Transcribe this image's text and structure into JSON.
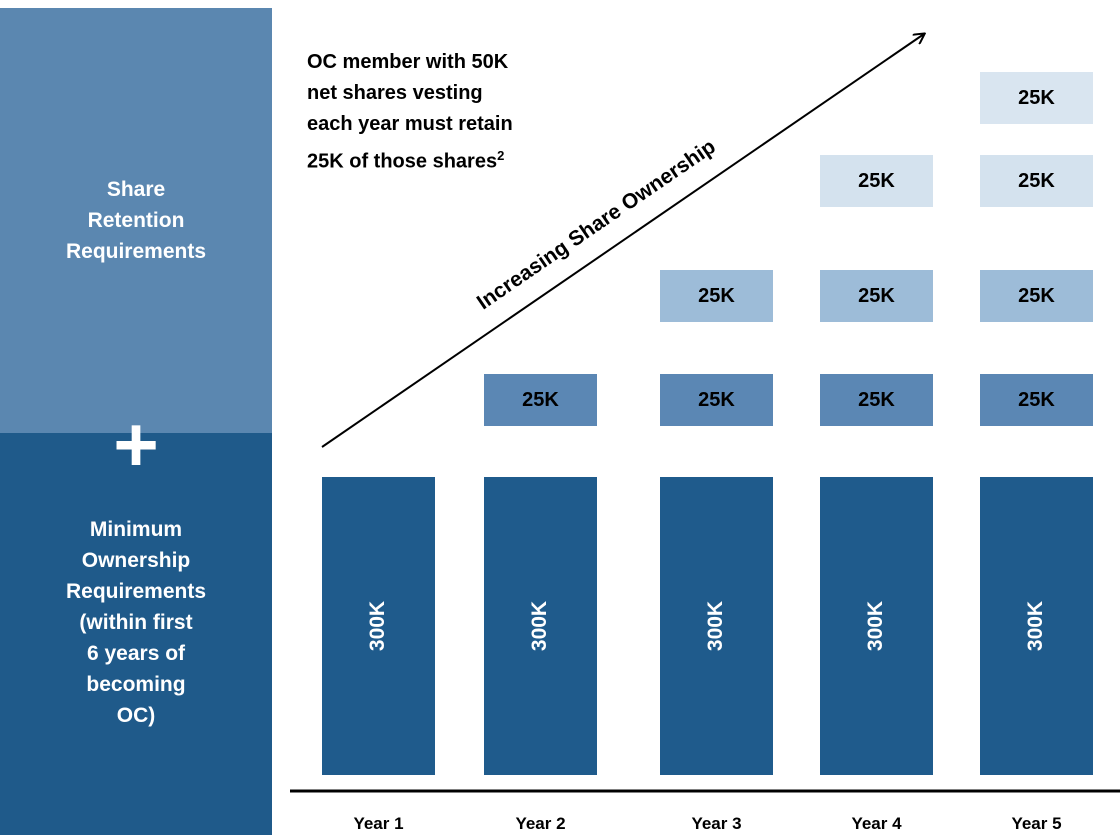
{
  "sidebar": {
    "retention": [
      "Share",
      "Retention",
      "Requirements"
    ],
    "plus": "+",
    "minimum": [
      "Minimum",
      "Ownership",
      "Requirements",
      "(within first",
      "6 years of",
      "becoming",
      "OC)"
    ]
  },
  "annotation": {
    "lines": [
      "OC member with 50K",
      "net shares vesting",
      "each year must retain",
      "25K of those shares"
    ],
    "footnote": "2"
  },
  "arrow_label": "Increasing Share Ownership",
  "columns": [
    {
      "label": "Year 1",
      "base": "300K",
      "blocks": []
    },
    {
      "label": "Year 2",
      "base": "300K",
      "blocks": [
        "25K"
      ]
    },
    {
      "label": "Year 3",
      "base": "300K",
      "blocks": [
        "25K",
        "25K"
      ]
    },
    {
      "label": "Year 4",
      "base": "300K",
      "blocks": [
        "25K",
        "25K",
        "25K"
      ]
    },
    {
      "label": "Year 5",
      "base": "300K",
      "blocks": [
        "25K",
        "25K",
        "25K",
        "25K"
      ]
    }
  ]
}
